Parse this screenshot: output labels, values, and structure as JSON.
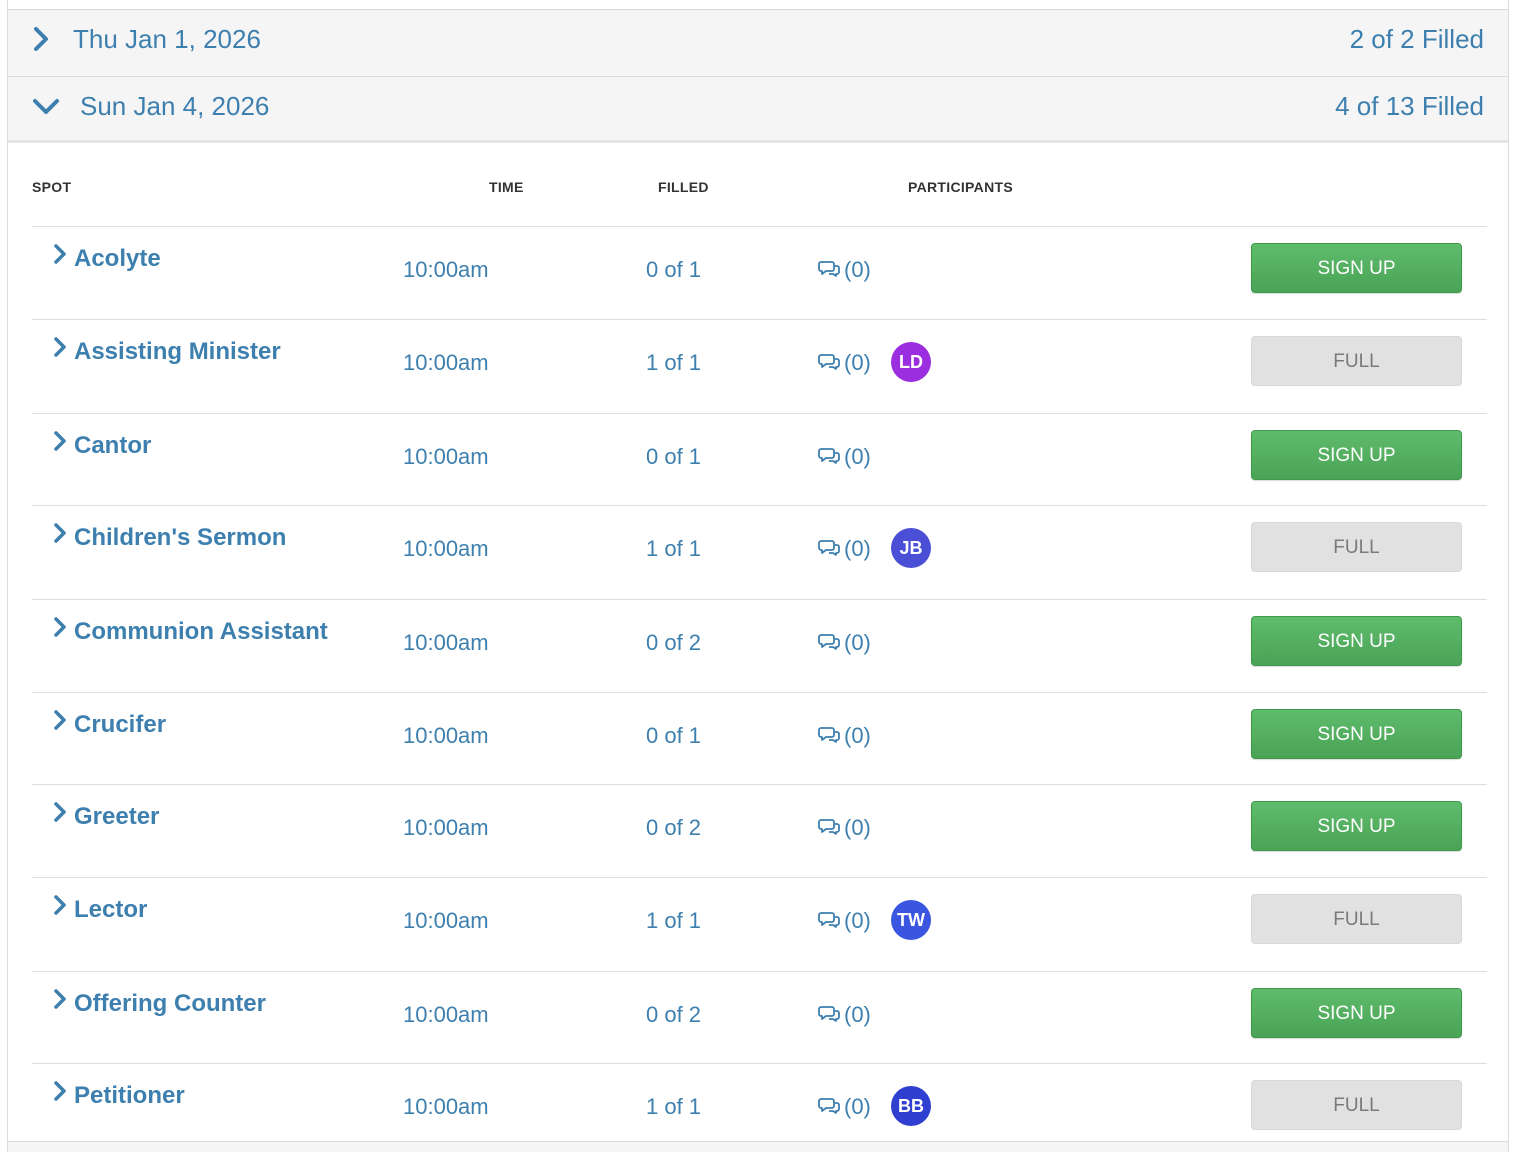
{
  "dates": [
    {
      "label": "Thu Jan 1, 2026",
      "filled": "2 of 2 Filled",
      "expanded": false
    },
    {
      "label": "Sun Jan 4, 2026",
      "filled": "4 of 13 Filled",
      "expanded": true
    }
  ],
  "columns": {
    "spot": "SPOT",
    "time": "TIME",
    "filled": "FILLED",
    "participants": "PARTICIPANTS"
  },
  "rows": [
    {
      "spot": "Acolyte",
      "time": "10:00am",
      "filled": "0 of 1",
      "comments": "(0)",
      "avatar": null,
      "button": "SIGN UP",
      "status": "open"
    },
    {
      "spot": "Assisting Minister",
      "time": "10:00am",
      "filled": "1 of 1",
      "comments": "(0)",
      "avatar": {
        "initials": "LD",
        "color": "#9b2fe0"
      },
      "button": "FULL",
      "status": "full"
    },
    {
      "spot": "Cantor",
      "time": "10:00am",
      "filled": "0 of 1",
      "comments": "(0)",
      "avatar": null,
      "button": "SIGN UP",
      "status": "open"
    },
    {
      "spot": "Children's Sermon",
      "time": "10:00am",
      "filled": "1 of 1",
      "comments": "(0)",
      "avatar": {
        "initials": "JB",
        "color": "#4a4fd6"
      },
      "button": "FULL",
      "status": "full"
    },
    {
      "spot": "Communion Assistant",
      "time": "10:00am",
      "filled": "0 of 2",
      "comments": "(0)",
      "avatar": null,
      "button": "SIGN UP",
      "status": "open"
    },
    {
      "spot": "Crucifer",
      "time": "10:00am",
      "filled": "0 of 1",
      "comments": "(0)",
      "avatar": null,
      "button": "SIGN UP",
      "status": "open"
    },
    {
      "spot": "Greeter",
      "time": "10:00am",
      "filled": "0 of 2",
      "comments": "(0)",
      "avatar": null,
      "button": "SIGN UP",
      "status": "open"
    },
    {
      "spot": "Lector",
      "time": "10:00am",
      "filled": "1 of 1",
      "comments": "(0)",
      "avatar": {
        "initials": "TW",
        "color": "#3a55e0"
      },
      "button": "FULL",
      "status": "full"
    },
    {
      "spot": "Offering Counter",
      "time": "10:00am",
      "filled": "0 of 2",
      "comments": "(0)",
      "avatar": null,
      "button": "SIGN UP",
      "status": "open"
    },
    {
      "spot": "Petitioner",
      "time": "10:00am",
      "filled": "1 of 1",
      "comments": "(0)",
      "avatar": {
        "initials": "BB",
        "color": "#2f3fd0"
      },
      "button": "FULL",
      "status": "full"
    }
  ],
  "colors": {
    "link": "#3d7fae",
    "signup": "#52ad5f",
    "full": "#e1e1e1"
  }
}
